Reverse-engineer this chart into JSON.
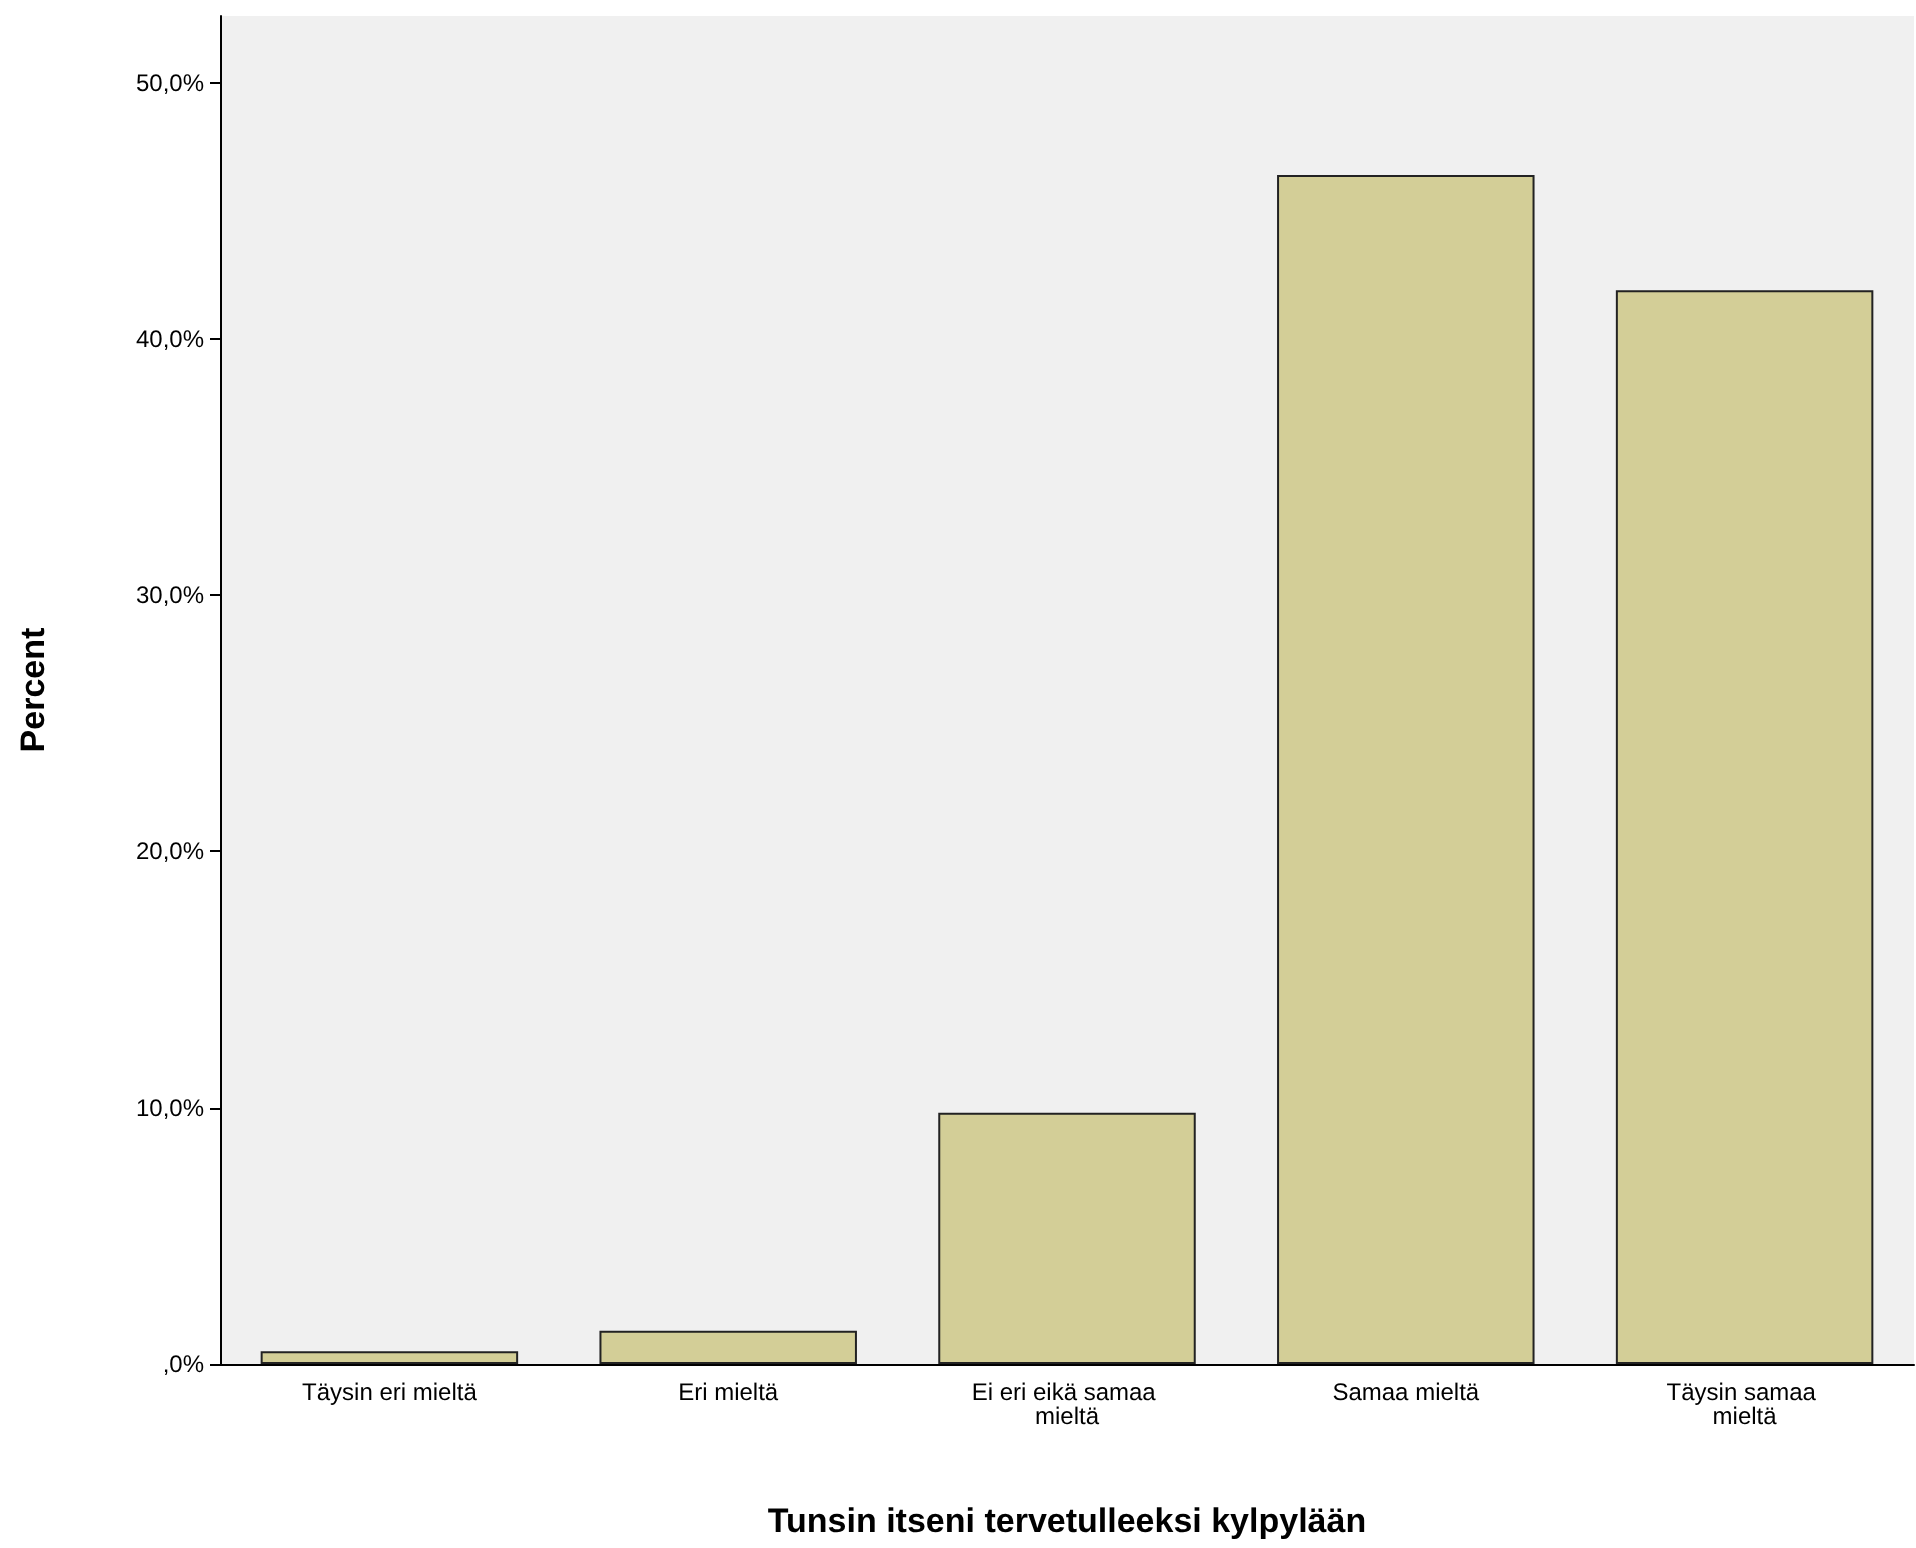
{
  "chart_data": {
    "type": "bar",
    "xlabel": "Tunsin itseni tervetulleeksi kylpylään",
    "ylabel": "Percent",
    "categories": [
      "Täysin eri mieltä",
      "Eri mieltä",
      "Ei eri eikä samaa mieltä",
      "Samaa mieltä",
      "Täysin samaa mieltä"
    ],
    "values": [
      0.5,
      1.3,
      9.8,
      46.4,
      41.9
    ],
    "color": "#d3ce97",
    "ylim": [
      0,
      52.6
    ],
    "yticks": [
      {
        "value": 0,
        "label": ",0%"
      },
      {
        "value": 10,
        "label": "10,0%"
      },
      {
        "value": 20,
        "label": "20,0%"
      },
      {
        "value": 30,
        "label": "30,0%"
      },
      {
        "value": 40,
        "label": "40,0%"
      },
      {
        "value": 50,
        "label": "50,0%"
      }
    ],
    "grid": false
  }
}
